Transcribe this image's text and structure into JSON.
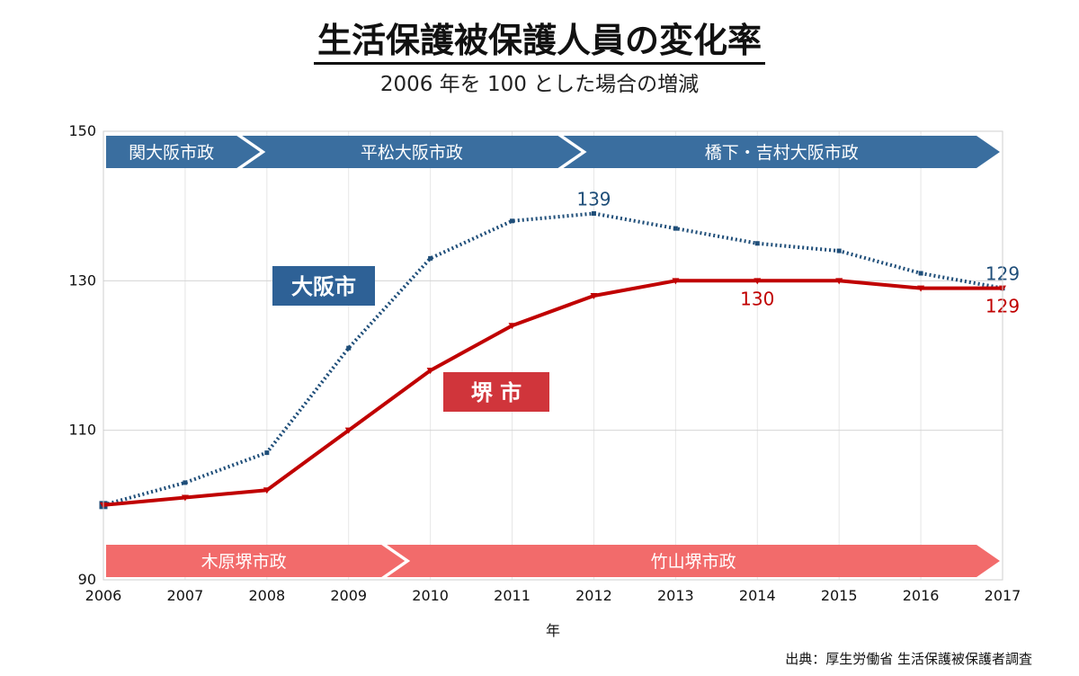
{
  "header": {
    "title": "生活保護被保護人員の変化率",
    "subtitle": "2006 年を 100 とした場合の増減"
  },
  "source": "出典：厚生労働省 生活保護被保護者調査",
  "colors": {
    "osaka": "#1f4e79",
    "sakai": "#c00000",
    "osaka_arrow": "#3a6e9f",
    "sakai_arrow": "#f26b6b",
    "osaka_legend": "#2e6196",
    "sakai_legend": "#d0353b"
  },
  "chart_data": {
    "type": "line",
    "xlabel": "年",
    "ylabel": "",
    "x": [
      2006,
      2007,
      2008,
      2009,
      2010,
      2011,
      2012,
      2013,
      2014,
      2015,
      2016,
      2017
    ],
    "ylim": [
      90,
      150
    ],
    "yticks": [
      90,
      110,
      130,
      150
    ],
    "grid": true,
    "series": [
      {
        "name": "大阪市",
        "style": "dotted",
        "color": "#1f4e79",
        "values": [
          100,
          103,
          107,
          121,
          133,
          138,
          139,
          137,
          135,
          134,
          131,
          129
        ]
      },
      {
        "name": "堺 市",
        "style": "solid",
        "color": "#c00000",
        "values": [
          100,
          101,
          102,
          110,
          118,
          124,
          128,
          130,
          130,
          130,
          129,
          129
        ]
      }
    ],
    "data_labels": [
      {
        "series": 0,
        "x": 2012,
        "text": "139",
        "position": "above"
      },
      {
        "series": 0,
        "x": 2017,
        "text": "129",
        "position": "above"
      },
      {
        "series": 1,
        "x": 2014,
        "text": "130",
        "position": "below"
      },
      {
        "series": 1,
        "x": 2017,
        "text": "129",
        "position": "below"
      }
    ],
    "annotations": {
      "osaka_terms": [
        {
          "label": "関大阪市政",
          "start": 2006,
          "end": 2007.95
        },
        {
          "label": "平松大阪市政",
          "start": 2007.95,
          "end": 2011.88
        },
        {
          "label": "橋下・吉村大阪市政",
          "start": 2011.88,
          "end": 2017
        }
      ],
      "sakai_terms": [
        {
          "label": "木原堺市政",
          "start": 2006,
          "end": 2009.72
        },
        {
          "label": "竹山堺市政",
          "start": 2009.72,
          "end": 2017
        }
      ]
    }
  }
}
